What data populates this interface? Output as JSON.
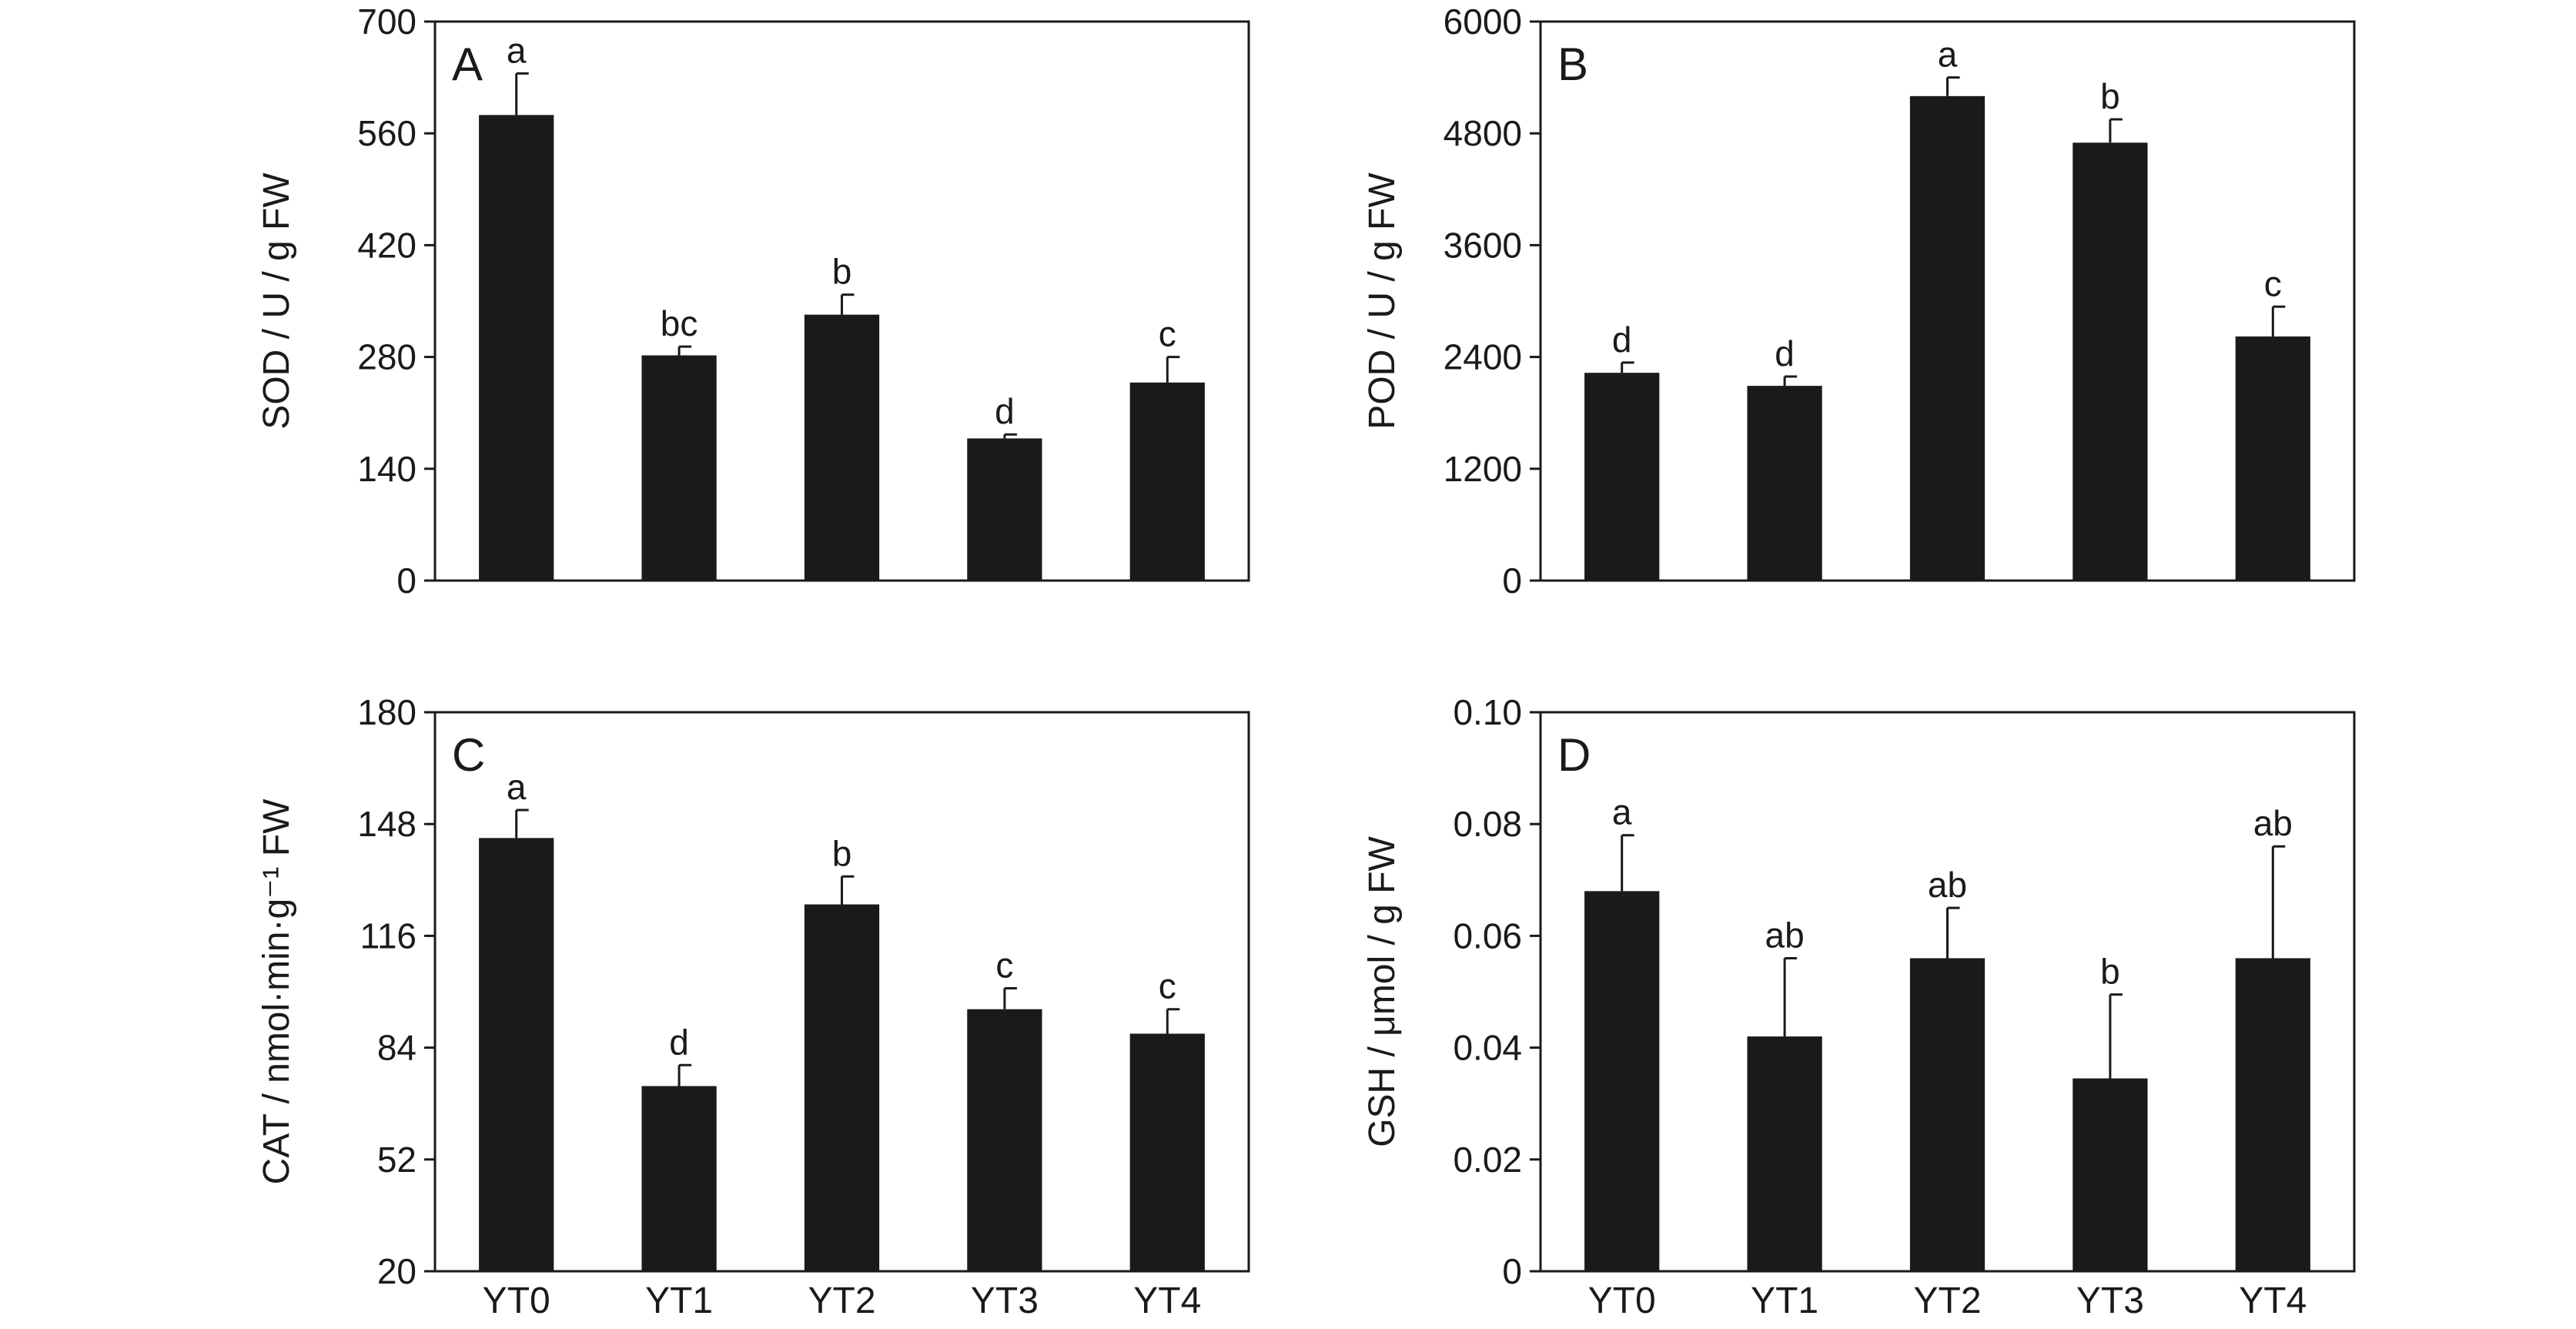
{
  "figure": {
    "bar_color": "#1a1a1a",
    "axis_color": "#1a1a1a",
    "background": "#ffffff"
  },
  "chart_data": [
    {
      "panel": "A",
      "type": "bar",
      "categories": [
        "YT0",
        "YT1",
        "YT2",
        "YT3",
        "YT4"
      ],
      "values": [
        583,
        282,
        333,
        178,
        248
      ],
      "errors": [
        52,
        11,
        25,
        5,
        32
      ],
      "letters": [
        "a",
        "bc",
        "b",
        "d",
        "c"
      ],
      "ylabel": "SOD / U / g FW",
      "ylim": [
        0,
        700
      ],
      "yticks": [
        "0",
        "140",
        "280",
        "420",
        "560",
        "700"
      ],
      "show_x_labels": false,
      "grid": false,
      "legend": "none"
    },
    {
      "panel": "B",
      "type": "bar",
      "categories": [
        "YT0",
        "YT1",
        "YT2",
        "YT3",
        "YT4"
      ],
      "values": [
        2230,
        2090,
        5200,
        4700,
        2620
      ],
      "errors": [
        110,
        100,
        200,
        250,
        320
      ],
      "letters": [
        "d",
        "d",
        "a",
        "b",
        "c"
      ],
      "ylabel": "POD / U / g FW",
      "ylim": [
        0,
        6000
      ],
      "yticks": [
        "0",
        "1200",
        "2400",
        "3600",
        "4800",
        "6000"
      ],
      "show_x_labels": false,
      "grid": false,
      "legend": "none"
    },
    {
      "panel": "C",
      "type": "bar",
      "categories": [
        "YT0",
        "YT1",
        "YT2",
        "YT3",
        "YT4"
      ],
      "values": [
        144,
        73,
        125,
        95,
        88
      ],
      "errors": [
        8,
        6,
        8,
        6,
        7
      ],
      "letters": [
        "a",
        "d",
        "b",
        "c",
        "c"
      ],
      "ylabel": "CAT / nmol·min·g⁻¹ FW",
      "ylim": [
        20,
        180
      ],
      "yticks": [
        "20",
        "52",
        "84",
        "116",
        "148",
        "180"
      ],
      "show_x_labels": true,
      "grid": false,
      "legend": "none"
    },
    {
      "panel": "D",
      "type": "bar",
      "categories": [
        "YT0",
        "YT1",
        "YT2",
        "YT3",
        "YT4"
      ],
      "values": [
        0.068,
        0.042,
        0.056,
        0.0345,
        0.056
      ],
      "errors": [
        0.01,
        0.014,
        0.009,
        0.015,
        0.02
      ],
      "letters": [
        "a",
        "ab",
        "ab",
        "b",
        "ab"
      ],
      "ylabel": "GSH / μmol / g FW",
      "ylim": [
        0,
        0.1
      ],
      "yticks": [
        "0",
        "0.02",
        "0.04",
        "0.06",
        "0.08",
        "0.10"
      ],
      "show_x_labels": true,
      "grid": false,
      "legend": "none"
    }
  ]
}
